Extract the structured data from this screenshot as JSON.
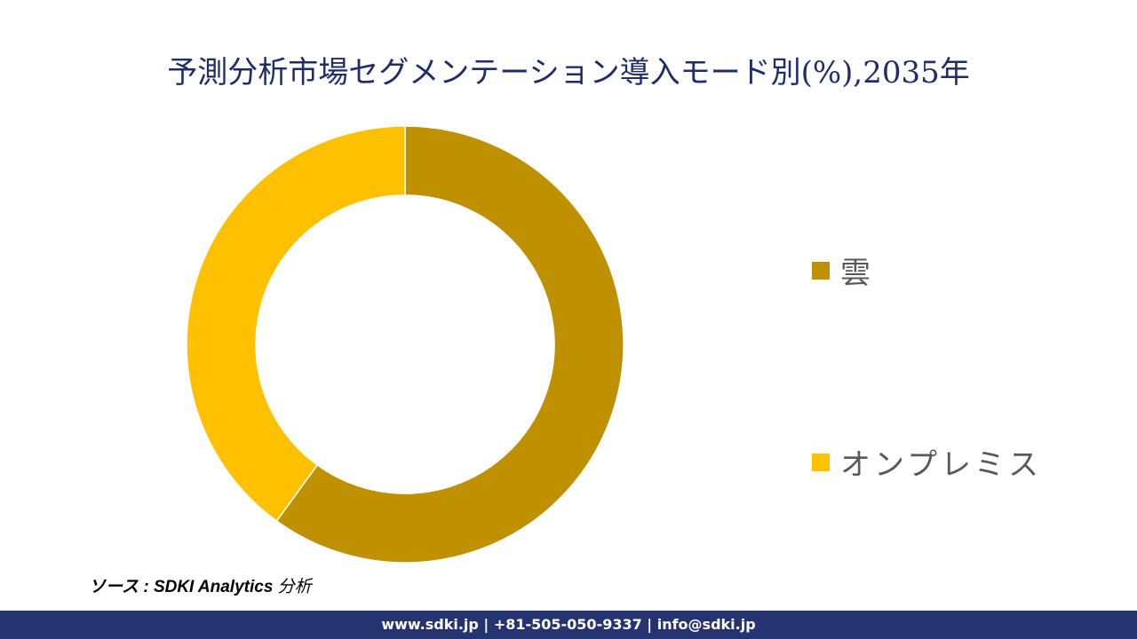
{
  "title": "予測分析市場セグメンテーション導入モード別(%),2035年",
  "chart_data": {
    "type": "pie",
    "subtype": "donut",
    "title": "予測分析市場セグメンテーション導入モード別(%),2035年",
    "categories": [
      "雲",
      "オンプレミス"
    ],
    "values": [
      60,
      40
    ],
    "colors": [
      "#bf9000",
      "#ffc000"
    ],
    "legend_position": "right",
    "start_angle_deg": 0,
    "direction": "clockwise"
  },
  "legend": {
    "items": [
      {
        "label": "雲",
        "color": "#bf9000"
      },
      {
        "label": "オンプレミス",
        "color": "#ffc000"
      }
    ]
  },
  "source": {
    "prefix": "ソース : ",
    "name": "SDKI Analytics ",
    "suffix": "分析"
  },
  "footer": {
    "text": "www.sdki.jp | +81-505-050-9337 | info@sdki.jp"
  }
}
